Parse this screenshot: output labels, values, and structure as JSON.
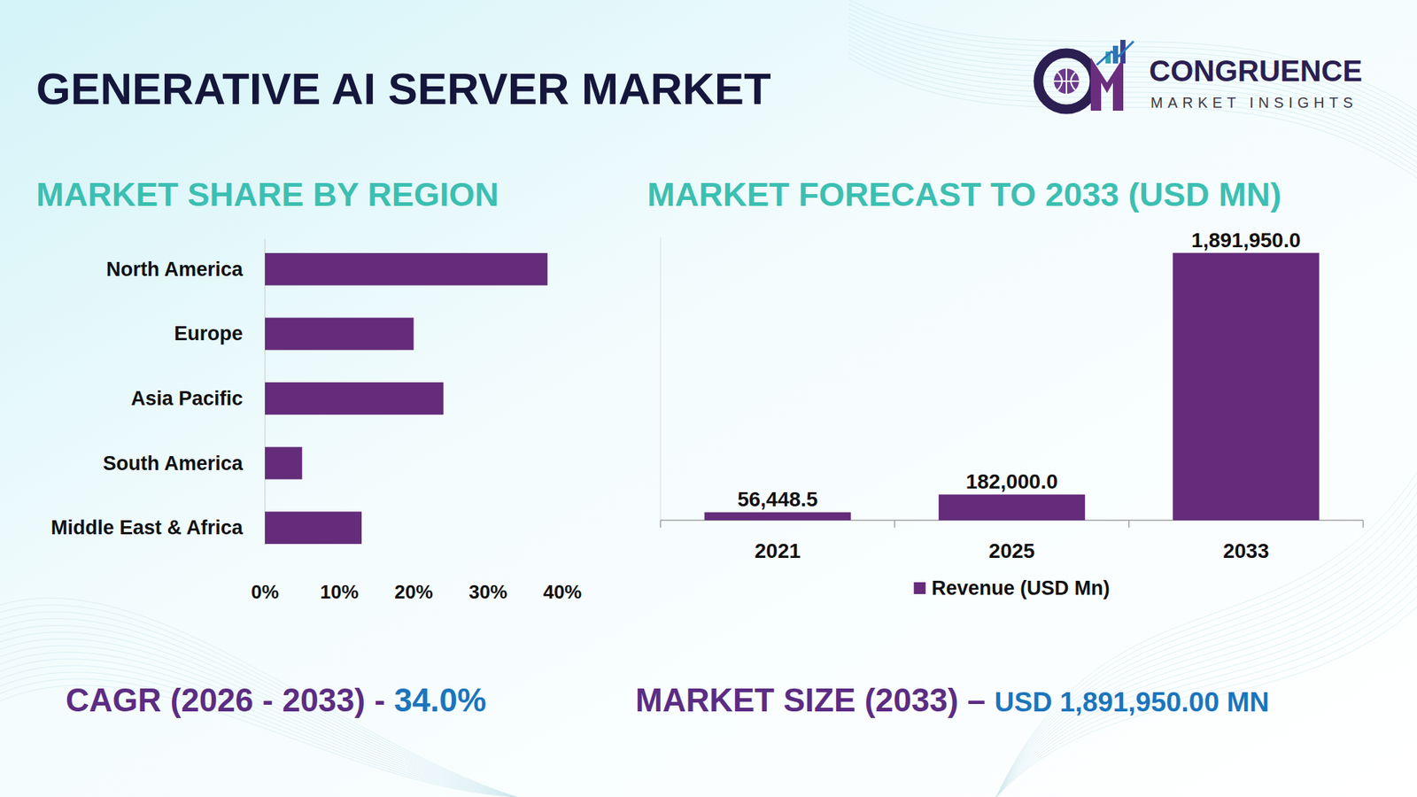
{
  "header": {
    "title": "GENERATIVE AI SERVER MARKET",
    "brand": "CONGRUENCE",
    "brand_tagline": "MARKET INSIGHTS"
  },
  "chart_data": [
    {
      "type": "bar",
      "title": "MARKET SHARE BY REGION",
      "orientation": "horizontal",
      "categories": [
        "North America",
        "Europe",
        "Asia Pacific",
        "South America",
        "Middle East & Africa"
      ],
      "values": [
        38,
        20,
        24,
        5,
        13
      ],
      "color": "#642c7a",
      "xlim": [
        0,
        40
      ],
      "xticks": [
        {
          "value": 0,
          "label": "0%"
        },
        {
          "value": 10,
          "label": "10%"
        },
        {
          "value": 20,
          "label": "20%"
        },
        {
          "value": 30,
          "label": "30%"
        },
        {
          "value": 40,
          "label": "40%"
        }
      ],
      "grid": false
    },
    {
      "type": "bar",
      "title": "MARKET FORECAST TO 2033 (USD MN)",
      "categories": [
        "2021",
        "2025",
        "2033"
      ],
      "series": [
        {
          "name": "Revenue (USD Mn)",
          "color": "#642c7a",
          "values": [
            56448.5,
            182000.0,
            1891950.0
          ],
          "value_labels": [
            "56,448.5",
            "182,000.0",
            "1,891,950.0"
          ]
        }
      ],
      "ylim": [
        0,
        2000000
      ],
      "tick_labels": "x",
      "data_labels": true,
      "legend": "bottom",
      "grid": false
    }
  ],
  "footer": {
    "cagr_label": "CAGR (2026 - 2033) - ",
    "cagr_value": "34.0%",
    "size_label": "MARKET SIZE (2033) – ",
    "size_value": "USD 1,891,950.00 MN"
  }
}
